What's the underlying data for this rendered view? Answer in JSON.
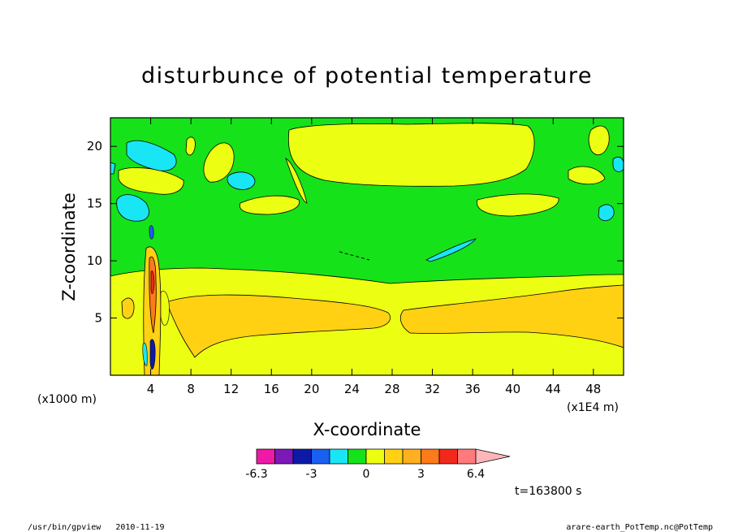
{
  "footer": {
    "left_program": "/usr/bin/gpview",
    "left_date": "2010-11-19",
    "right_source": "arare-earth_PotTemp.nc@PotTemp"
  },
  "time_label": "t=163800 s",
  "chart_data": {
    "type": "contour",
    "title": "disturbunce of potential temperature",
    "xlabel": "X-coordinate",
    "ylabel": "Z-coordinate",
    "x_unit_label": "(x1E4 m)",
    "y_unit_label": "(x1000 m)",
    "x_ticks": [
      "4",
      "8",
      "12",
      "16",
      "20",
      "24",
      "28",
      "32",
      "36",
      "40",
      "44",
      "48"
    ],
    "y_ticks": [
      "5",
      "10",
      "15",
      "20"
    ],
    "xlim": [
      0,
      51
    ],
    "ylim": [
      0,
      22.5
    ],
    "grid": false,
    "colorbar": {
      "colors": [
        "#ee1aa6",
        "#7a18b8",
        "#0d1aa8",
        "#1a60f0",
        "#19e6f5",
        "#16e21a",
        "#ecff12",
        "#ffd112",
        "#ffb021",
        "#ff7a1a",
        "#f2281c",
        "#ff7b7b",
        "#ffb6b8"
      ],
      "labels": [
        "-6.3",
        "-3",
        "0",
        "3",
        "6.4"
      ],
      "extend": "max"
    },
    "regions": [
      {
        "level": "background",
        "color": "#16e21a"
      },
      {
        "level": "positive-1",
        "color": "#ecff12"
      },
      {
        "level": "positive-2",
        "color": "#ffd112"
      },
      {
        "level": "negative-1",
        "color": "#19e6f5"
      }
    ]
  }
}
